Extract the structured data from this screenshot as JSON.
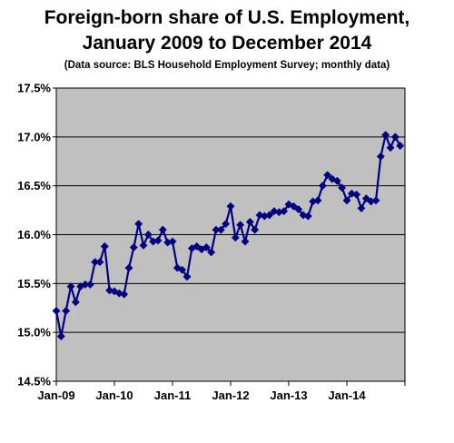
{
  "chart_data": {
    "type": "line",
    "title": "Foreign-born share of U.S. Employment, January 2009 to December 2014",
    "title_lines": [
      "Foreign-born share of U.S. Employment,",
      "January 2009 to December 2014"
    ],
    "subtitle": "(Data source: BLS Household Employment Survey; monthly data)",
    "xlabel": "",
    "ylabel": "",
    "ylim": [
      14.5,
      17.5
    ],
    "y_ticks": [
      "14.5%",
      "15.0%",
      "15.5%",
      "16.0%",
      "16.5%",
      "17.0%",
      "17.5%"
    ],
    "x_ticks": [
      "Jan-09",
      "Jan-10",
      "Jan-11",
      "Jan-12",
      "Jan-13",
      "Jan-14"
    ],
    "grid": "horizontal",
    "plot_background": "#c0c0c0",
    "line_color": "#000080",
    "marker": "diamond",
    "series": [
      {
        "values": [
          15.22,
          14.96,
          15.22,
          15.47,
          15.31,
          15.47,
          15.49,
          15.49,
          15.72,
          15.72,
          15.88,
          15.43,
          15.42,
          15.4,
          15.39,
          15.66,
          15.87,
          16.11,
          15.89,
          16.0,
          15.93,
          15.94,
          16.05,
          15.92,
          15.93,
          15.66,
          15.64,
          15.57,
          15.86,
          15.88,
          15.85,
          15.87,
          15.82,
          16.05,
          16.05,
          16.11,
          16.29,
          15.97,
          16.1,
          15.93,
          16.13,
          16.05,
          16.2,
          16.19,
          16.2,
          16.24,
          16.23,
          16.24,
          16.31,
          16.29,
          16.26,
          16.2,
          16.19,
          16.34,
          16.35,
          16.5,
          16.61,
          16.57,
          16.55,
          16.48,
          16.35,
          16.42,
          16.41,
          16.27,
          16.37,
          16.34,
          16.35,
          16.8,
          17.02,
          16.89,
          17.0,
          16.91
        ]
      }
    ]
  }
}
